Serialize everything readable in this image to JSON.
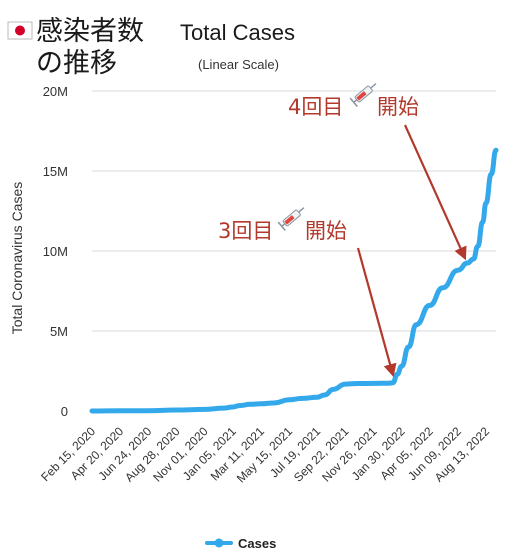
{
  "header": {
    "jp_title_line1": "感染者数",
    "jp_title_line2": "の推移",
    "title": "Total Cases",
    "subtitle": "(Linear Scale)",
    "flag_icon": "japan-flag-icon"
  },
  "colors": {
    "series": "#33a8ea",
    "annotation": "#b2392b",
    "grid": "#d9d9d9",
    "flag_red": "#d4002b"
  },
  "chart_data": {
    "type": "line",
    "title": "Total Cases",
    "subtitle": "(Linear Scale)",
    "xlabel": "",
    "ylabel": "Total Coronavirus Cases",
    "ylim": [
      0,
      20000000
    ],
    "yticks": [
      {
        "value": 0,
        "label": "0"
      },
      {
        "value": 5000000,
        "label": "5M"
      },
      {
        "value": 10000000,
        "label": "10M"
      },
      {
        "value": 15000000,
        "label": "15M"
      },
      {
        "value": 20000000,
        "label": "20M"
      }
    ],
    "grid": true,
    "legend": "bottom",
    "x_start": "2020-02-15",
    "x_end": "2022-09-05",
    "xtick_labels": [
      {
        "date": "2020-02-15",
        "label": "Feb 15, 2020"
      },
      {
        "date": "2020-04-20",
        "label": "Apr 20, 2020"
      },
      {
        "date": "2020-06-24",
        "label": "Jun 24, 2020"
      },
      {
        "date": "2020-08-28",
        "label": "Aug 28, 2020"
      },
      {
        "date": "2020-11-01",
        "label": "Nov 01, 2020"
      },
      {
        "date": "2021-01-05",
        "label": "Jan 05, 2021"
      },
      {
        "date": "2021-03-11",
        "label": "Mar 11, 2021"
      },
      {
        "date": "2021-05-15",
        "label": "May 15, 2021"
      },
      {
        "date": "2021-07-19",
        "label": "Jul 19, 2021"
      },
      {
        "date": "2021-09-22",
        "label": "Sep 22, 2021"
      },
      {
        "date": "2021-11-26",
        "label": "Nov 26, 2021"
      },
      {
        "date": "2022-01-30",
        "label": "Jan 30, 2022"
      },
      {
        "date": "2022-04-05",
        "label": "Apr 05, 2022"
      },
      {
        "date": "2022-06-09",
        "label": "Jun 09, 2022"
      },
      {
        "date": "2022-08-13",
        "label": "Aug 13, 2022"
      }
    ],
    "series": [
      {
        "name": "Cases",
        "points": [
          [
            "2020-02-15",
            0
          ],
          [
            "2020-04-20",
            10000
          ],
          [
            "2020-06-24",
            20000
          ],
          [
            "2020-08-28",
            60000
          ],
          [
            "2020-11-01",
            100000
          ],
          [
            "2020-12-15",
            180000
          ],
          [
            "2021-01-05",
            250000
          ],
          [
            "2021-01-20",
            340000
          ],
          [
            "2021-02-15",
            420000
          ],
          [
            "2021-03-11",
            450000
          ],
          [
            "2021-04-10",
            500000
          ],
          [
            "2021-05-15",
            700000
          ],
          [
            "2021-06-15",
            790000
          ],
          [
            "2021-07-19",
            860000
          ],
          [
            "2021-08-05",
            1000000
          ],
          [
            "2021-08-25",
            1350000
          ],
          [
            "2021-09-22",
            1680000
          ],
          [
            "2021-10-20",
            1720000
          ],
          [
            "2021-11-26",
            1725000
          ],
          [
            "2021-12-31",
            1735000
          ],
          [
            "2022-01-10",
            1760000
          ],
          [
            "2022-01-20",
            2300000
          ],
          [
            "2022-01-30",
            2800000
          ],
          [
            "2022-02-15",
            4000000
          ],
          [
            "2022-03-05",
            5400000
          ],
          [
            "2022-04-05",
            6600000
          ],
          [
            "2022-05-05",
            7700000
          ],
          [
            "2022-06-09",
            8800000
          ],
          [
            "2022-07-01",
            9250000
          ],
          [
            "2022-07-15",
            9500000
          ],
          [
            "2022-07-25",
            10300000
          ],
          [
            "2022-08-05",
            11800000
          ],
          [
            "2022-08-13",
            13000000
          ],
          [
            "2022-08-25",
            14800000
          ],
          [
            "2022-09-05",
            16300000
          ]
        ]
      }
    ],
    "annotations": [
      {
        "text": "3回目",
        "suffix": "開始",
        "icon": "syringe-icon",
        "arrow_to": [
          "2022-01-10",
          1900000
        ]
      },
      {
        "text": "4回目",
        "suffix": "開始",
        "icon": "syringe-icon",
        "arrow_to": [
          "2022-06-25",
          9200000
        ]
      }
    ]
  },
  "legend": {
    "label": "Cases"
  }
}
